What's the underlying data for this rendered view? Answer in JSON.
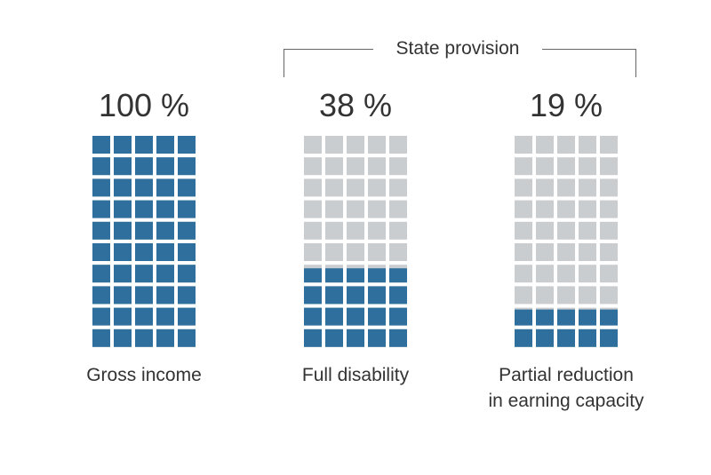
{
  "chart_data": {
    "type": "waffle",
    "grid": {
      "columns": 5,
      "rows": 10
    },
    "bracket_label": "State provision",
    "bracket_spans": [
      "Full disability",
      "Partial reduction in earning capacity"
    ],
    "colors": {
      "filled": "#2f6f9d",
      "empty": "#c9cdd0",
      "text": "#333333"
    },
    "series": [
      {
        "value": 100,
        "value_label": "100 %",
        "label_lines": [
          "Gross income"
        ]
      },
      {
        "value": 38,
        "value_label": "38 %",
        "label_lines": [
          "Full disability"
        ]
      },
      {
        "value": 19,
        "value_label": "19 %",
        "label_lines": [
          "Partial reduction",
          "in earning capacity"
        ]
      }
    ]
  }
}
